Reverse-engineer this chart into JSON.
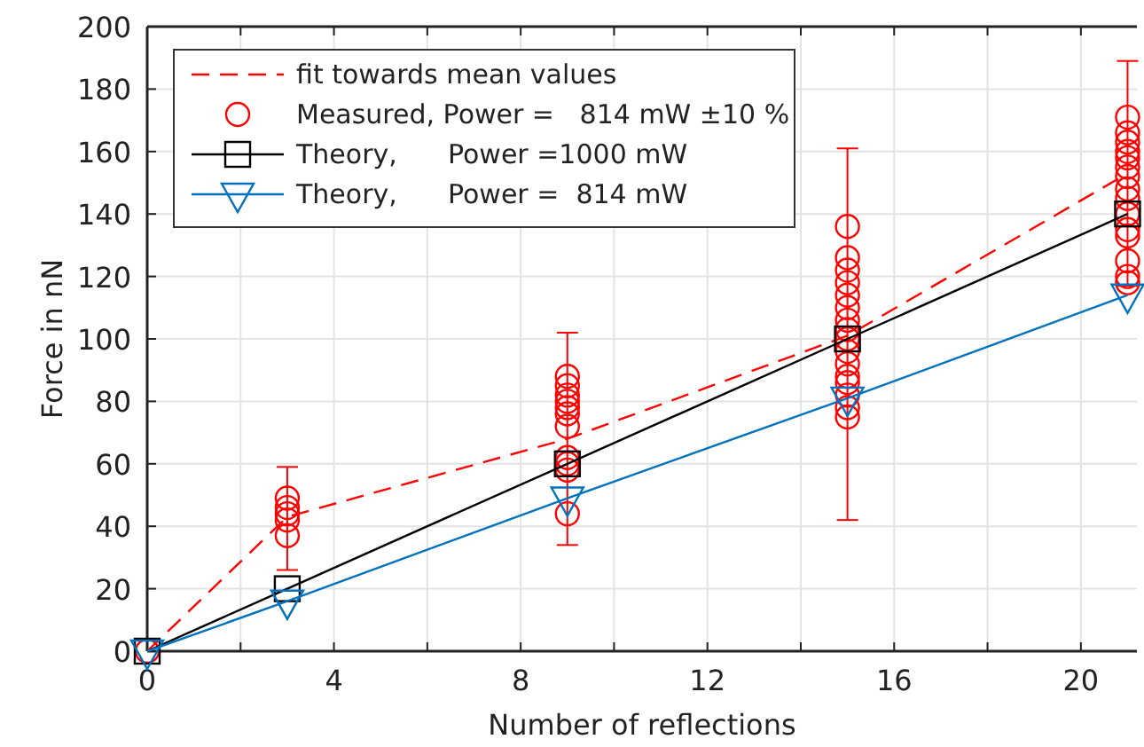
{
  "chart_data": {
    "type": "line",
    "xlabel": "Number of reflections",
    "ylabel": "Force in nN",
    "xlim": [
      0,
      21.2
    ],
    "ylim": [
      0,
      200
    ],
    "xticks": [
      0,
      {
        "value": 2,
        "label": null
      },
      4,
      {
        "value": 6,
        "label": null
      },
      8,
      {
        "value": 10,
        "label": null
      },
      12,
      {
        "value": 14,
        "label": null
      },
      16,
      {
        "value": 18,
        "label": null
      },
      20
    ],
    "yticks": [
      0,
      20,
      40,
      60,
      80,
      100,
      120,
      140,
      160,
      180,
      200
    ],
    "grid": true,
    "legend": "top left",
    "series": [
      {
        "name": "fit towards mean values",
        "color": "#ff0000",
        "line_style": "dashed",
        "marker": "none",
        "x": [
          0,
          3,
          9,
          15,
          21
        ],
        "values": [
          0,
          43,
          68,
          101,
          153
        ],
        "errors": [
          null,
          [
            26,
            59
          ],
          [
            34,
            102
          ],
          [
            42,
            161
          ],
          [
            117,
            189
          ]
        ]
      },
      {
        "name": "Measured, Power =   814 mW ±10 %",
        "type": "scatter",
        "color": "#ff0000",
        "marker": "circle",
        "x": [
          0,
          3,
          3,
          3,
          3,
          3,
          9,
          9,
          9,
          9,
          9,
          9,
          9,
          9,
          9,
          9,
          9,
          15,
          15,
          15,
          15,
          15,
          15,
          15,
          15,
          15,
          15,
          15,
          15,
          15,
          15,
          15,
          15,
          21,
          21,
          21,
          21,
          21,
          21,
          21,
          21,
          21,
          21,
          21,
          21,
          21,
          21,
          21
        ],
        "values": [
          0,
          37,
          42,
          44,
          46,
          49,
          44,
          58,
          60,
          62,
          72,
          76,
          78,
          80,
          82,
          85,
          88,
          75,
          78,
          82,
          86,
          88,
          92,
          96,
          100,
          103,
          106,
          110,
          114,
          118,
          122,
          126,
          136,
          118,
          120,
          125,
          133,
          135,
          140,
          145,
          148,
          152,
          155,
          158,
          160,
          163,
          166,
          171
        ]
      },
      {
        "name": "Theory,      Power =1000 mW",
        "color": "#000000",
        "line_style": "solid",
        "marker": "square",
        "x": [
          0,
          3,
          9,
          15,
          21
        ],
        "values": [
          0,
          20,
          60,
          100,
          140
        ]
      },
      {
        "name": "Theory,      Power =  814 mW",
        "color": "#0072bd",
        "line_style": "solid",
        "marker": "triangle",
        "x": [
          0,
          3,
          9,
          15,
          21
        ],
        "values": [
          0,
          16,
          49,
          81,
          114
        ]
      }
    ]
  }
}
